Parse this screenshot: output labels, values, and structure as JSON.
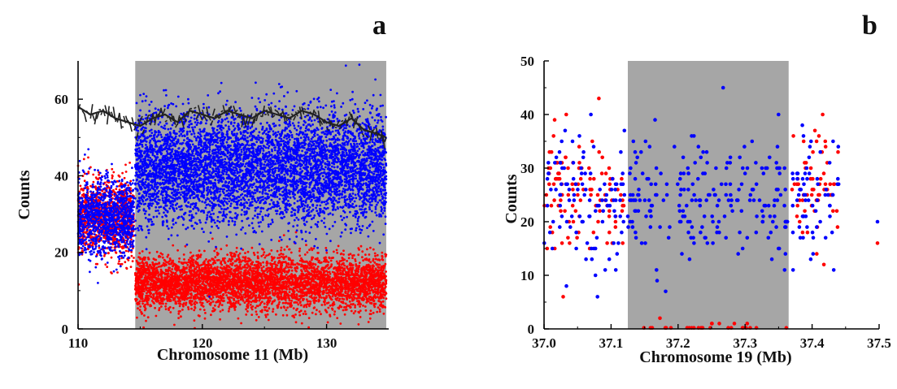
{
  "chart_data": [
    {
      "panel": "a",
      "type": "scatter",
      "xlabel": "Chromosome 11 (Mb)",
      "ylabel": "Counts",
      "xlim": [
        110,
        135
      ],
      "ylim": [
        0,
        70
      ],
      "xticks": [
        110,
        120,
        130
      ],
      "yticks": [
        0,
        20,
        40,
        60
      ],
      "x_tick_labels": [
        "110",
        "120",
        "130"
      ],
      "y_tick_labels": [
        "0",
        "20",
        "40",
        "60"
      ],
      "shaded_region": {
        "x": [
          114.6,
          134.8
        ],
        "color": "#a6a6a6"
      },
      "series": [
        {
          "color": "#ff0000",
          "style": "points",
          "segments": [
            {
              "x": [
                110,
                114.5
              ],
              "mean": 29,
              "sd": 5
            },
            {
              "x": [
                114.6,
                134.8
              ],
              "mean": 12,
              "sd": 3.5
            }
          ]
        },
        {
          "color": "#0000ff",
          "style": "points",
          "segments": [
            {
              "x": [
                110,
                114.5
              ],
              "mean": 29,
              "sd": 5
            },
            {
              "x": [
                114.6,
                134.8
              ],
              "mean": 42,
              "sd": 7
            }
          ]
        },
        {
          "color": "#222222",
          "style": "line",
          "x": [
            110,
            111,
            112,
            113,
            114,
            115,
            116,
            117,
            118,
            119,
            120,
            121,
            122,
            123,
            124,
            125,
            126,
            127,
            128,
            129,
            130,
            131,
            132,
            133,
            134,
            134.8
          ],
          "y": [
            58,
            56,
            57,
            55,
            54,
            53,
            55,
            56,
            54,
            57,
            56,
            55,
            57,
            56,
            55,
            57,
            56,
            55,
            57,
            56,
            54,
            53,
            55,
            52,
            51,
            50
          ]
        }
      ]
    },
    {
      "panel": "b",
      "type": "scatter",
      "xlabel": "Chromosome 19 (Mb)",
      "ylabel": "Counts",
      "xlim": [
        37.0,
        37.5
      ],
      "ylim": [
        0,
        50
      ],
      "xticks": [
        37.0,
        37.1,
        37.2,
        37.3,
        37.4,
        37.5
      ],
      "yticks": [
        0,
        10,
        20,
        30,
        40,
        50
      ],
      "x_tick_labels": [
        "37.0",
        "37.1",
        "37.2",
        "37.3",
        "37.4",
        "37.5"
      ],
      "y_tick_labels": [
        "0",
        "10",
        "20",
        "30",
        "40",
        "50"
      ],
      "shaded_region": {
        "x": [
          37.125,
          37.365
        ],
        "color": "#a6a6a6"
      },
      "series": [
        {
          "color": "#ff0000",
          "style": "points",
          "segments": [
            {
              "x": [
                37.0,
                37.12
              ],
              "mean": 26,
              "sd": 6
            },
            {
              "x": [
                37.125,
                37.365
              ],
              "mean": 0.4,
              "sd": 0.6
            },
            {
              "x": [
                37.37,
                37.44
              ],
              "mean": 26,
              "sd": 6
            }
          ],
          "extra": [
            [
              37.5,
              16
            ]
          ]
        },
        {
          "color": "#0000ff",
          "style": "points",
          "segments": [
            {
              "x": [
                37.0,
                37.12
              ],
              "mean": 24,
              "sd": 6
            },
            {
              "x": [
                37.125,
                37.365
              ],
              "mean": 24,
              "sd": 6
            },
            {
              "x": [
                37.37,
                37.44
              ],
              "mean": 24,
              "sd": 6
            }
          ],
          "extra": [
            [
              37.5,
              20
            ]
          ]
        }
      ]
    }
  ],
  "panel_labels": {
    "a": "a",
    "b": "b"
  }
}
